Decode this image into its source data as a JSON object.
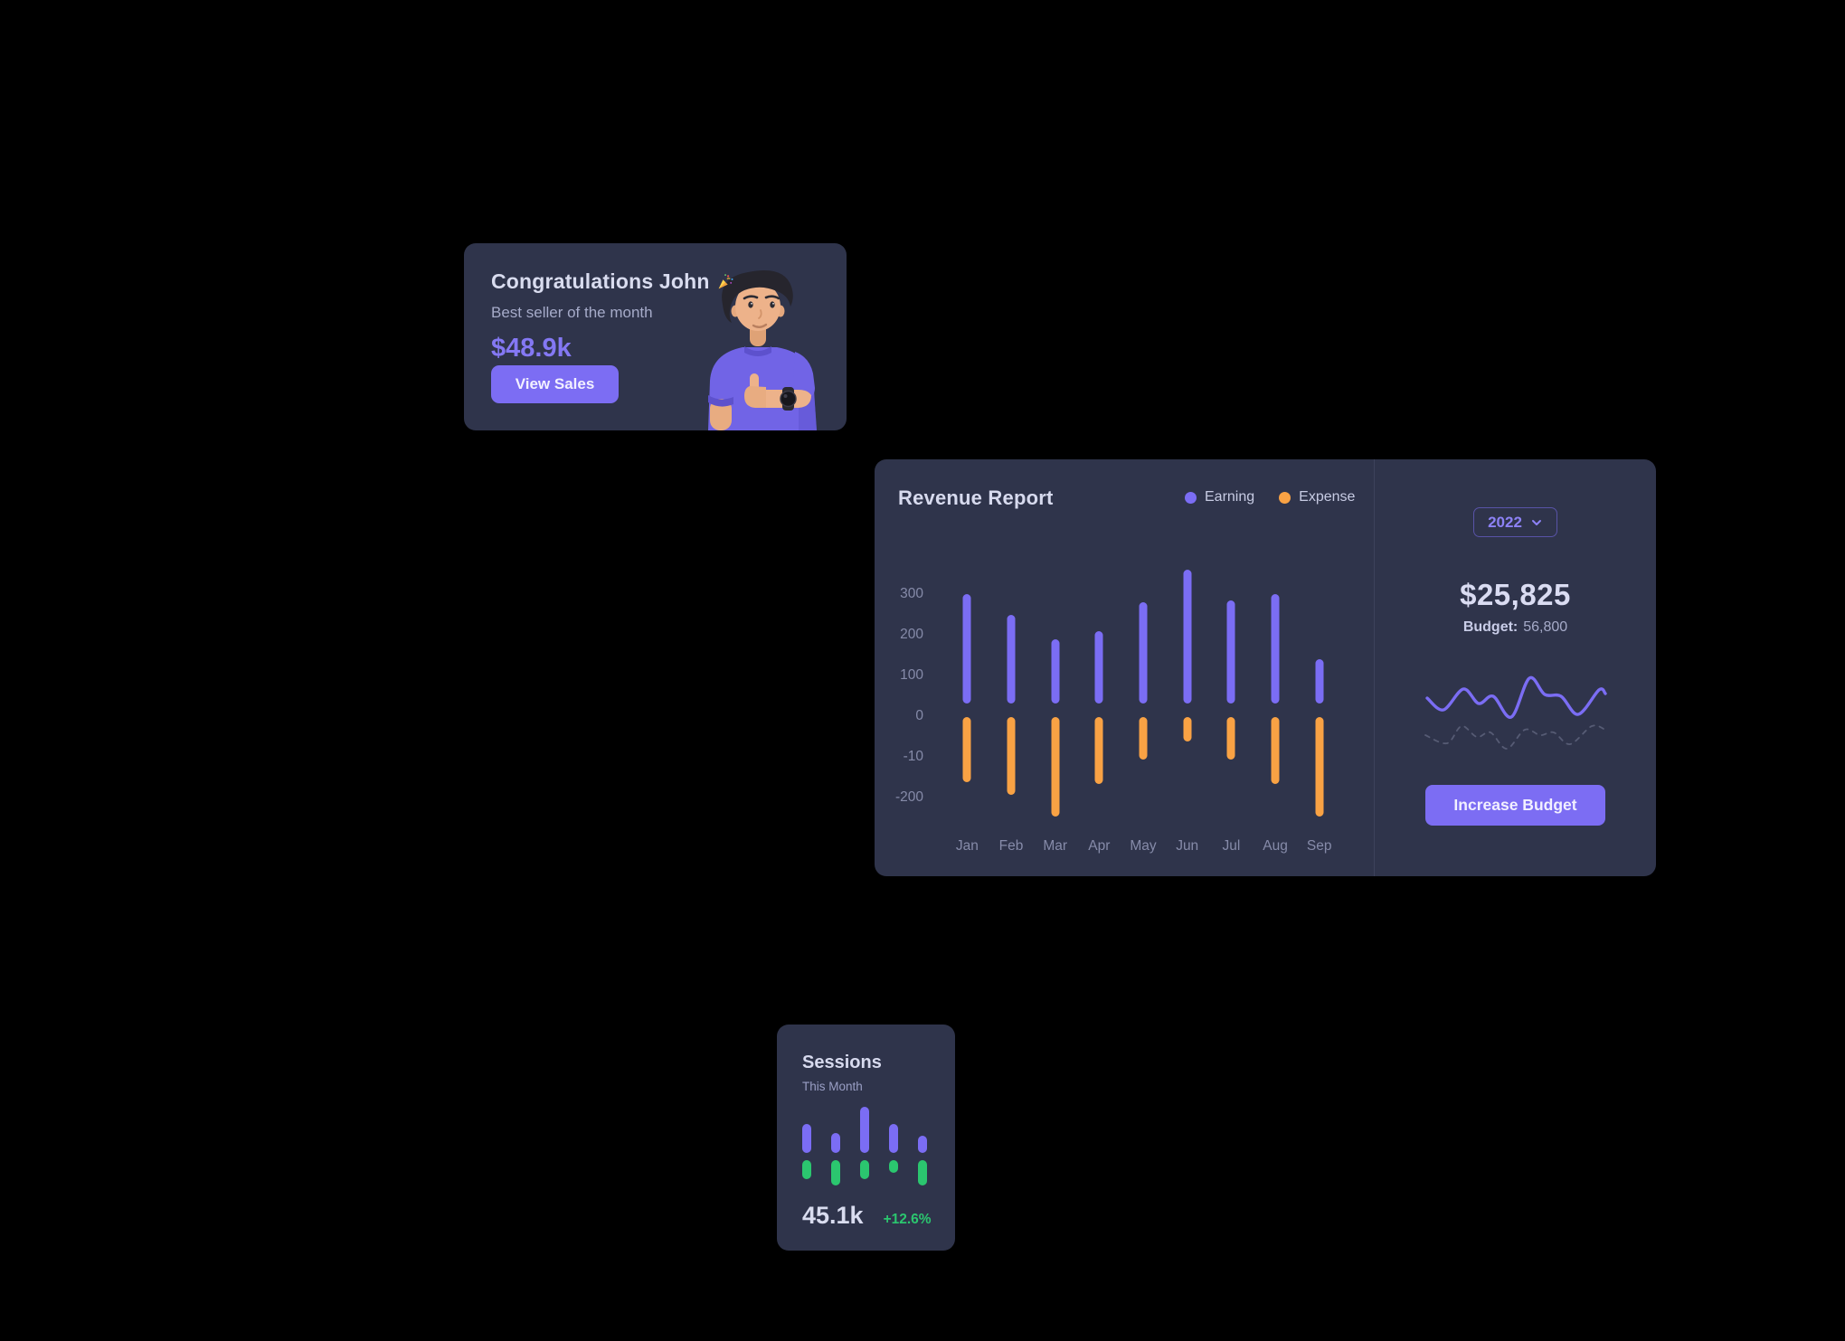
{
  "page": {
    "background": "#000000"
  },
  "congrats_card": {
    "title": "Congratulations John",
    "party_popper_icon": "🎉",
    "subtitle": "Best seller of the month",
    "amount": "$48.9k",
    "button_label": "View Sales"
  },
  "revenue_card": {
    "title": "Revenue Report",
    "year_selector": "2022",
    "total": "$25,825",
    "budget_label": "Budget:",
    "budget_value": "56,800",
    "button_label": "Increase Budget"
  },
  "sessions_card": {
    "title": "Sessions",
    "subtitle": "This Month",
    "value": "45.1k",
    "change": "+12.6%"
  },
  "colors": {
    "primary_purple": "#7b6df4",
    "warning_orange": "#f9a244",
    "success_green": "#2bc66f",
    "card_background": "#2f344b",
    "page_background": "#000000"
  },
  "chart_data": [
    {
      "id": "revenue",
      "type": "bar",
      "title": "Revenue Report",
      "categories": [
        "Jan",
        "Feb",
        "Mar",
        "Apr",
        "May",
        "Jun",
        "Jul",
        "Aug",
        "Sep"
      ],
      "series": [
        {
          "name": "Earning",
          "color": "#7b6df4",
          "values": [
            300,
            250,
            190,
            210,
            280,
            360,
            285,
            300,
            140
          ]
        },
        {
          "name": "Expense",
          "color": "#f9a244",
          "values": [
            -160,
            -190,
            -245,
            -165,
            -105,
            -60,
            -105,
            -165,
            -245
          ]
        }
      ],
      "y_ticks": [
        "300",
        "200",
        "100",
        "0",
        "-10",
        "-200"
      ],
      "grid": false,
      "legend_position": "top-right"
    },
    {
      "id": "budget-sparkline",
      "type": "line",
      "series": [
        {
          "name": "current",
          "style": "solid",
          "color": "#7b6df4",
          "points": [
            [
              5,
              32
            ],
            [
              23,
              45
            ],
            [
              45,
              22
            ],
            [
              62,
              38
            ],
            [
              78,
              30
            ],
            [
              98,
              53
            ],
            [
              118,
              10
            ],
            [
              135,
              28
            ],
            [
              153,
              30
            ],
            [
              172,
              50
            ],
            [
              195,
              23
            ],
            [
              202,
              27
            ]
          ]
        },
        {
          "name": "previous",
          "style": "dashed",
          "color": "#565b74",
          "points": [
            [
              3,
              73
            ],
            [
              27,
              82
            ],
            [
              43,
              63
            ],
            [
              60,
              75
            ],
            [
              75,
              70
            ],
            [
              93,
              88
            ],
            [
              113,
              67
            ],
            [
              130,
              73
            ],
            [
              145,
              70
            ],
            [
              163,
              83
            ],
            [
              187,
              63
            ],
            [
              202,
              67
            ]
          ]
        }
      ]
    },
    {
      "id": "sessions",
      "type": "bar",
      "series": [
        {
          "name": "sessions-purple",
          "color": "#7b6df4",
          "values": [
            32,
            22,
            51,
            32,
            19
          ]
        },
        {
          "name": "sessions-green",
          "color": "#2bc66f",
          "values": [
            21,
            28,
            21,
            14,
            28
          ]
        }
      ]
    }
  ]
}
